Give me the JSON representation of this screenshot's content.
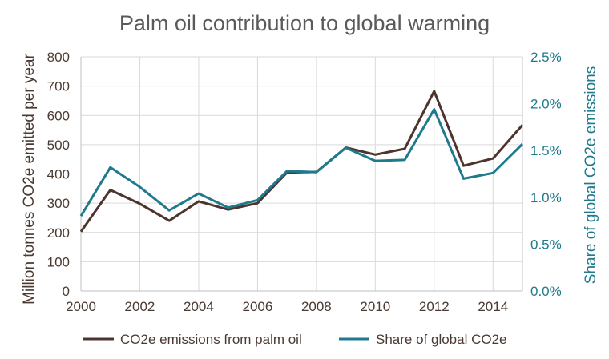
{
  "chart_data": {
    "type": "line",
    "title": "Palm oil contribution to global warming",
    "xlabel": "",
    "ylabel": "Million tonnes CO2e emitted per year",
    "y2label": "Share of global CO2e emissions",
    "x": [
      2000,
      2001,
      2002,
      2003,
      2004,
      2005,
      2006,
      2007,
      2008,
      2009,
      2010,
      2011,
      2012,
      2013,
      2014,
      2015
    ],
    "xlim": [
      2000,
      2015
    ],
    "xticks": [
      "2000",
      "2002",
      "2004",
      "2006",
      "2008",
      "2010",
      "2012",
      "2014"
    ],
    "xtick_values": [
      2000,
      2002,
      2004,
      2006,
      2008,
      2010,
      2012,
      2014
    ],
    "ylim": [
      0,
      800
    ],
    "yticks": [
      "0",
      "100",
      "200",
      "300",
      "400",
      "500",
      "600",
      "700",
      "800"
    ],
    "ytick_values": [
      0,
      100,
      200,
      300,
      400,
      500,
      600,
      700,
      800
    ],
    "y2lim": [
      0,
      2.5
    ],
    "y2ticks": [
      "0.0%",
      "0.5%",
      "1.0%",
      "1.5%",
      "2.0%",
      "2.5%"
    ],
    "y2tick_values": [
      0,
      0.5,
      1.0,
      1.5,
      2.0,
      2.5
    ],
    "grid": true,
    "legend_position": "bottom",
    "series": [
      {
        "name": "CO2e emissions from palm oil",
        "axis": "left",
        "color": "#4e342e",
        "values": [
          203,
          345,
          298,
          240,
          306,
          278,
          300,
          405,
          407,
          490,
          466,
          486,
          683,
          428,
          453,
          567
        ]
      },
      {
        "name": "Share of global CO2e",
        "axis": "right",
        "color": "#1e7a8c",
        "values": [
          0.8,
          1.32,
          1.11,
          0.86,
          1.04,
          0.89,
          0.97,
          1.28,
          1.27,
          1.53,
          1.39,
          1.4,
          1.94,
          1.2,
          1.26,
          1.57
        ]
      }
    ]
  }
}
